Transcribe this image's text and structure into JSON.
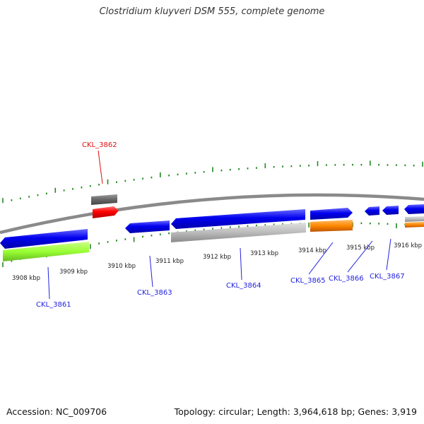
{
  "title": "Clostridium kluyveri DSM 555, complete genome",
  "accession_text": "Accession: NC_009706",
  "summary_text": "Topology: circular; Length: 3,964,618 bp; Genes: 3,919",
  "ruler": {
    "labels": [
      "3908 kbp",
      "3909 kbp",
      "3910 kbp",
      "3911 kbp",
      "3912 kbp",
      "3913 kbp",
      "3914 kbp",
      "3915 kbp",
      "3916 kbp"
    ]
  },
  "genes": [
    {
      "id": "CKL_3861",
      "color": "#2222dd"
    },
    {
      "id": "CKL_3862",
      "color": "#dd1111"
    },
    {
      "id": "CKL_3863",
      "color": "#2222dd"
    },
    {
      "id": "CKL_3864",
      "color": "#2222dd"
    },
    {
      "id": "CKL_3865",
      "color": "#2222dd"
    },
    {
      "id": "CKL_3866",
      "color": "#2222dd"
    },
    {
      "id": "CKL_3867",
      "color": "#2222dd"
    }
  ],
  "colors": {
    "cds": "#0000ee",
    "rna": "#ff0000",
    "pseudo": "#666666",
    "cog_green": "#99ff33",
    "cog_grey": "#bbbbbb",
    "cog_orange": "#ff8800",
    "tick": "#228822",
    "backbone": "#888888"
  }
}
